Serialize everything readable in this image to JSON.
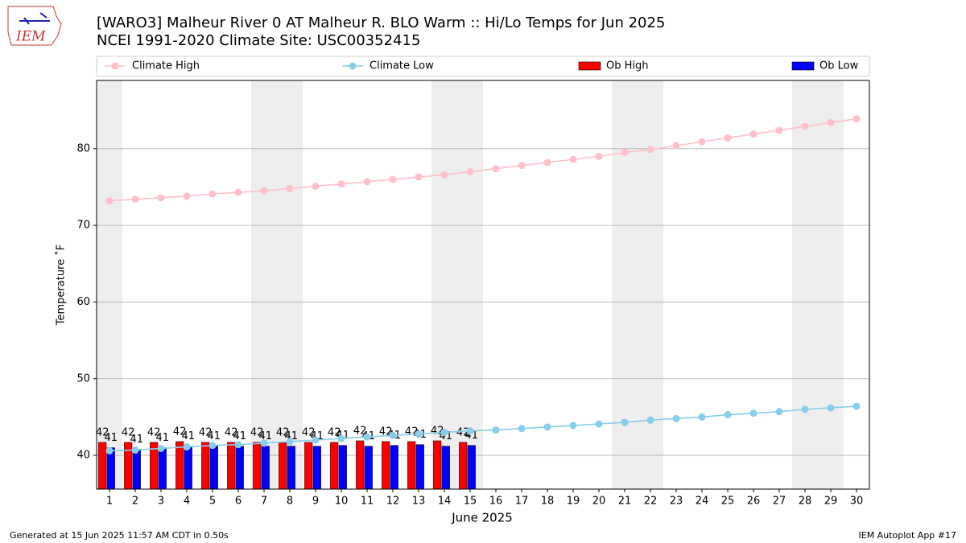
{
  "logo": "IEM",
  "footer": {
    "left": "Generated at 15 Jun 2025 11:57 AM CDT in 0.50s",
    "right": "IEM Autoplot App #17"
  },
  "chart_data": {
    "type": "bar",
    "title": "[WARO3] Malheur River 0 AT Malheur R. BLO Warm :: Hi/Lo Temps for Jun 2025",
    "subtitle": "NCEI 1991-2020 Climate Site: USC00352415",
    "x_label": "June 2025",
    "y_label": "Temperature ˚F",
    "x": [
      1,
      2,
      3,
      4,
      5,
      6,
      7,
      8,
      9,
      10,
      11,
      12,
      13,
      14,
      15,
      16,
      17,
      18,
      19,
      20,
      21,
      22,
      23,
      24,
      25,
      26,
      27,
      28,
      29,
      30
    ],
    "highlight_days": [
      1,
      7,
      8,
      14,
      15,
      21,
      22,
      28,
      29
    ],
    "series": [
      {
        "name": "Climate High",
        "type": "line",
        "color": "#ffc0cb",
        "values": [
          73.2,
          73.4,
          73.6,
          73.8,
          74.1,
          74.3,
          74.5,
          74.8,
          75.1,
          75.4,
          75.7,
          76.0,
          76.3,
          76.6,
          77.0,
          77.4,
          77.8,
          78.2,
          78.6,
          79.0,
          79.5,
          79.9,
          80.4,
          80.9,
          81.4,
          81.9,
          82.4,
          82.9,
          83.4,
          83.9
        ]
      },
      {
        "name": "Climate Low",
        "type": "line",
        "color": "#87ceeb",
        "values": [
          40.6,
          40.7,
          40.9,
          41.1,
          41.3,
          41.4,
          41.6,
          41.8,
          42.0,
          42.2,
          42.4,
          42.6,
          42.8,
          43.0,
          43.2,
          43.3,
          43.5,
          43.7,
          43.9,
          44.1,
          44.3,
          44.6,
          44.8,
          45.0,
          45.3,
          45.5,
          45.7,
          46.0,
          46.2,
          46.4
        ]
      },
      {
        "name": "Ob High",
        "type": "bar",
        "color": "#ff0000",
        "values": [
          41.7,
          41.7,
          41.7,
          41.8,
          41.7,
          41.7,
          41.7,
          41.7,
          41.7,
          41.7,
          41.9,
          41.8,
          41.8,
          41.9,
          41.7,
          null,
          null,
          null,
          null,
          null,
          null,
          null,
          null,
          null,
          null,
          null,
          null,
          null,
          null,
          null
        ],
        "value_labels": [
          "42",
          "42",
          "42",
          "42",
          "42",
          "42",
          "42",
          "42",
          "42",
          "42",
          "42",
          "42",
          "42",
          "42",
          "42",
          null,
          null,
          null,
          null,
          null,
          null,
          null,
          null,
          null,
          null,
          null,
          null,
          null,
          null,
          null
        ]
      },
      {
        "name": "Ob Low",
        "type": "bar",
        "color": "#0000ff",
        "values": [
          41.0,
          40.8,
          41.0,
          41.2,
          41.2,
          41.2,
          41.2,
          41.2,
          41.2,
          41.3,
          41.2,
          41.3,
          41.4,
          41.2,
          41.3,
          null,
          null,
          null,
          null,
          null,
          null,
          null,
          null,
          null,
          null,
          null,
          null,
          null,
          null,
          null
        ],
        "value_labels": [
          "41",
          "41",
          "41",
          "41",
          "41",
          "41",
          "41",
          "41",
          "41",
          "41",
          "41",
          "41",
          "41",
          "41",
          "41",
          null,
          null,
          null,
          null,
          null,
          null,
          null,
          null,
          null,
          null,
          null,
          null,
          null,
          null,
          null
        ]
      }
    ],
    "xlim": [
      0.5,
      30.5
    ],
    "ylim": [
      35.6,
      88.9
    ],
    "xticks": [
      1,
      2,
      3,
      4,
      5,
      6,
      7,
      8,
      9,
      10,
      11,
      12,
      13,
      14,
      15,
      16,
      17,
      18,
      19,
      20,
      21,
      22,
      23,
      24,
      25,
      26,
      27,
      28,
      29,
      30
    ],
    "yticks": [
      40,
      50,
      60,
      70,
      80
    ],
    "grid": true
  }
}
